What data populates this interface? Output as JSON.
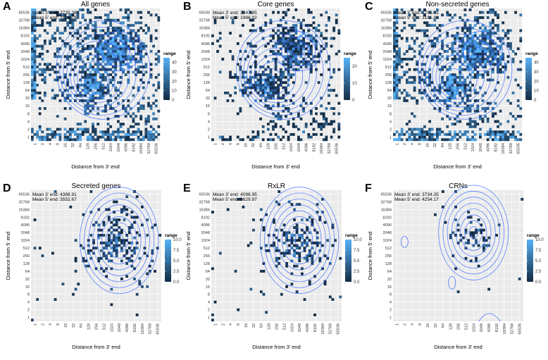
{
  "chart_data": [
    {
      "panel": "A",
      "title": "All genes",
      "type": "heatmap",
      "xlabel": "Distance from 3' end",
      "ylabel": "Distance from 5' end",
      "mean3": "Mean 3' end: 3735.38",
      "mean5": "Mean 5' end: 3119.79",
      "x_ticks": [
        "1",
        "2",
        "4",
        "8",
        "16",
        "32",
        "64",
        "128",
        "256",
        "512",
        "1024",
        "2048",
        "4096",
        "8192",
        "16384",
        "32768",
        "65536"
      ],
      "y_ticks": [
        "1",
        "2",
        "4",
        "8",
        "16",
        "32",
        "64",
        "128",
        "256",
        "512",
        "1024",
        "2048",
        "4096",
        "8192",
        "16384",
        "32768",
        "65536"
      ],
      "legend": {
        "title": "range",
        "ticks": [
          "40",
          "30",
          "20",
          "10",
          "0"
        ],
        "max": 45
      },
      "peak": {
        "x": 128,
        "y": 128
      },
      "density": "high"
    },
    {
      "panel": "B",
      "title": "Core genes",
      "type": "heatmap",
      "xlabel": "Distance from 3' end",
      "ylabel": "Distance from 5' end",
      "mean3": "Mean 3' end: 3047.85",
      "mean5": "Mean 5' end: 1986.92",
      "x_ticks": [
        "1",
        "2",
        "4",
        "8",
        "16",
        "32",
        "64",
        "128",
        "256",
        "512",
        "1024",
        "2048",
        "4096",
        "8192",
        "16384",
        "32768",
        "65536"
      ],
      "y_ticks": [
        "1",
        "2",
        "4",
        "8",
        "16",
        "32",
        "64",
        "128",
        "256",
        "512",
        "1024",
        "2048",
        "4096",
        "8192",
        "16384",
        "32768",
        "65536"
      ],
      "legend": {
        "title": "range",
        "ticks": [
          "20",
          "10",
          "0"
        ],
        "max": 25
      },
      "peak": {
        "x": 128,
        "y": 128
      },
      "density": "medium"
    },
    {
      "panel": "C",
      "title": "Non-secreted genes",
      "type": "heatmap",
      "xlabel": "Distance from 3' end",
      "ylabel": "Distance from 5' end",
      "mean3": "Mean 3' end: 3708.03",
      "mean5": "Mean 5' end: 3101.88",
      "x_ticks": [
        "1",
        "2",
        "4",
        "8",
        "16",
        "32",
        "64",
        "128",
        "256",
        "512",
        "1024",
        "2048",
        "4096",
        "8192",
        "16384",
        "32768",
        "65536"
      ],
      "y_ticks": [
        "1",
        "2",
        "4",
        "8",
        "16",
        "32",
        "64",
        "128",
        "256",
        "512",
        "1024",
        "2048",
        "4096",
        "8192",
        "16384",
        "32768",
        "65536"
      ],
      "legend": {
        "title": "range",
        "ticks": [
          "40",
          "30",
          "20",
          "10",
          "0"
        ],
        "max": 45
      },
      "peak": {
        "x": 128,
        "y": 128
      },
      "density": "high"
    },
    {
      "panel": "D",
      "title": "Secreted genes",
      "type": "heatmap",
      "xlabel": "Distance from 3' end",
      "ylabel": "Distance from 5' end",
      "mean3": "Mean 3' end: 4388.91",
      "mean5": "Mean 5' end: 3552.67",
      "x_ticks": [
        "1",
        "2",
        "4",
        "8",
        "16",
        "32",
        "64",
        "128",
        "256",
        "512",
        "1024",
        "2048",
        "4096",
        "8192",
        "16384",
        "32768",
        "65536"
      ],
      "y_ticks": [
        "1",
        "2",
        "4",
        "8",
        "16",
        "32",
        "64",
        "128",
        "256",
        "512",
        "1024",
        "2048",
        "4096",
        "8192",
        "16384",
        "32768",
        "65536"
      ],
      "legend": {
        "title": "range",
        "ticks": [
          "10.0",
          "7.5",
          "5.0",
          "2.5",
          "0.0"
        ],
        "max": 10
      },
      "peak": {
        "x": 2048,
        "y": 1024
      },
      "density": "sparse"
    },
    {
      "panel": "E",
      "title": "RxLR",
      "type": "heatmap",
      "xlabel": "Distance from 3' end",
      "ylabel": "Distance from 5' end",
      "mean3": "Mean 3' end: 4098.95",
      "mean5": "Mean 5' end: 3629.97",
      "x_ticks": [
        "1",
        "2",
        "4",
        "8",
        "16",
        "32",
        "64",
        "128",
        "256",
        "512",
        "1024",
        "2048",
        "4096",
        "8192",
        "16384",
        "32768",
        "65536"
      ],
      "y_ticks": [
        "1",
        "2",
        "4",
        "8",
        "16",
        "32",
        "64",
        "128",
        "256",
        "512",
        "1024",
        "2048",
        "4096",
        "8192",
        "16384",
        "32768",
        "65536"
      ],
      "legend": {
        "title": "range",
        "ticks": [
          "10.0",
          "7.5",
          "5.0",
          "2.5",
          "0.0"
        ],
        "max": 10
      },
      "peak": {
        "x": 2048,
        "y": 1024
      },
      "density": "sparse"
    },
    {
      "panel": "F",
      "title": "CRNs",
      "type": "heatmap",
      "xlabel": "Distance from 3' end",
      "ylabel": "Distance from 5' end",
      "mean3": "Mean 3' end: 3734.35",
      "mean5": "Mean 5' end: 4254.17",
      "x_ticks": [
        "1",
        "2",
        "4",
        "8",
        "16",
        "32",
        "64",
        "128",
        "256",
        "512",
        "1024",
        "2048",
        "4096",
        "8192",
        "16384",
        "32768",
        "65536"
      ],
      "y_ticks": [
        "1",
        "2",
        "4",
        "8",
        "16",
        "32",
        "64",
        "128",
        "256",
        "512",
        "1024",
        "2048",
        "4096",
        "8192",
        "16384",
        "32768",
        "65536"
      ],
      "legend": {
        "title": "range",
        "ticks": [
          "10.0",
          "7.5",
          "5.0",
          "2.5",
          "0.0"
        ],
        "max": 10
      },
      "peak": {
        "x": 1024,
        "y": 2048
      },
      "density": "very-sparse"
    }
  ],
  "colors": {
    "panel_bg": "#ebebeb",
    "grid": "#ffffff",
    "tile_low": "#132b43",
    "tile_high": "#56b1f7",
    "contour": "#3366ff"
  }
}
